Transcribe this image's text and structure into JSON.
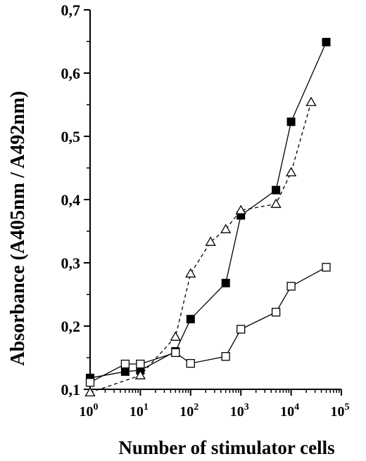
{
  "chart_data": {
    "type": "line",
    "xlabel": "Number of stimulator cells",
    "ylabel": "Absorbance (A405nm / A492nm)",
    "xscale": "log",
    "xlim": [
      1,
      100000
    ],
    "ylim": [
      0.1,
      0.7
    ],
    "x_ticks": [
      {
        "value": 1,
        "base": "10",
        "exp": "0"
      },
      {
        "value": 10,
        "base": "10",
        "exp": "1"
      },
      {
        "value": 100,
        "base": "10",
        "exp": "2"
      },
      {
        "value": 1000,
        "base": "10",
        "exp": "3"
      },
      {
        "value": 10000,
        "base": "10",
        "exp": "4"
      },
      {
        "value": 100000,
        "base": "10",
        "exp": "5"
      }
    ],
    "y_ticks": [
      {
        "value": 0.1,
        "label": "0,1"
      },
      {
        "value": 0.2,
        "label": "0,2"
      },
      {
        "value": 0.3,
        "label": "0,3"
      },
      {
        "value": 0.4,
        "label": "0,4"
      },
      {
        "value": 0.5,
        "label": "0,5"
      },
      {
        "value": 0.6,
        "label": "0,6"
      },
      {
        "value": 0.7,
        "label": "0,7"
      }
    ],
    "grid": false,
    "series": [
      {
        "marker": "filled-square",
        "line": "solid",
        "points": [
          [
            1,
            0.118
          ],
          [
            5,
            0.128
          ],
          [
            10,
            0.13
          ],
          [
            50,
            0.16
          ],
          [
            100,
            0.211
          ],
          [
            500,
            0.268
          ],
          [
            1000,
            0.375
          ],
          [
            5000,
            0.415
          ],
          [
            10000,
            0.523
          ],
          [
            50000,
            0.649
          ]
        ]
      },
      {
        "marker": "open-triangle",
        "line": "dashed",
        "points": [
          [
            1,
            0.095
          ],
          [
            10,
            0.122
          ],
          [
            50,
            0.183
          ],
          [
            100,
            0.283
          ],
          [
            250,
            0.333
          ],
          [
            500,
            0.353
          ],
          [
            1000,
            0.383
          ],
          [
            5000,
            0.393
          ],
          [
            10000,
            0.443
          ],
          [
            25000,
            0.554
          ]
        ]
      },
      {
        "marker": "open-square",
        "line": "solid",
        "points": [
          [
            1,
            0.111
          ],
          [
            5,
            0.14
          ],
          [
            10,
            0.14
          ],
          [
            50,
            0.158
          ],
          [
            100,
            0.141
          ],
          [
            500,
            0.152
          ],
          [
            1000,
            0.195
          ],
          [
            5000,
            0.222
          ],
          [
            10000,
            0.263
          ],
          [
            50000,
            0.293
          ]
        ]
      }
    ]
  }
}
